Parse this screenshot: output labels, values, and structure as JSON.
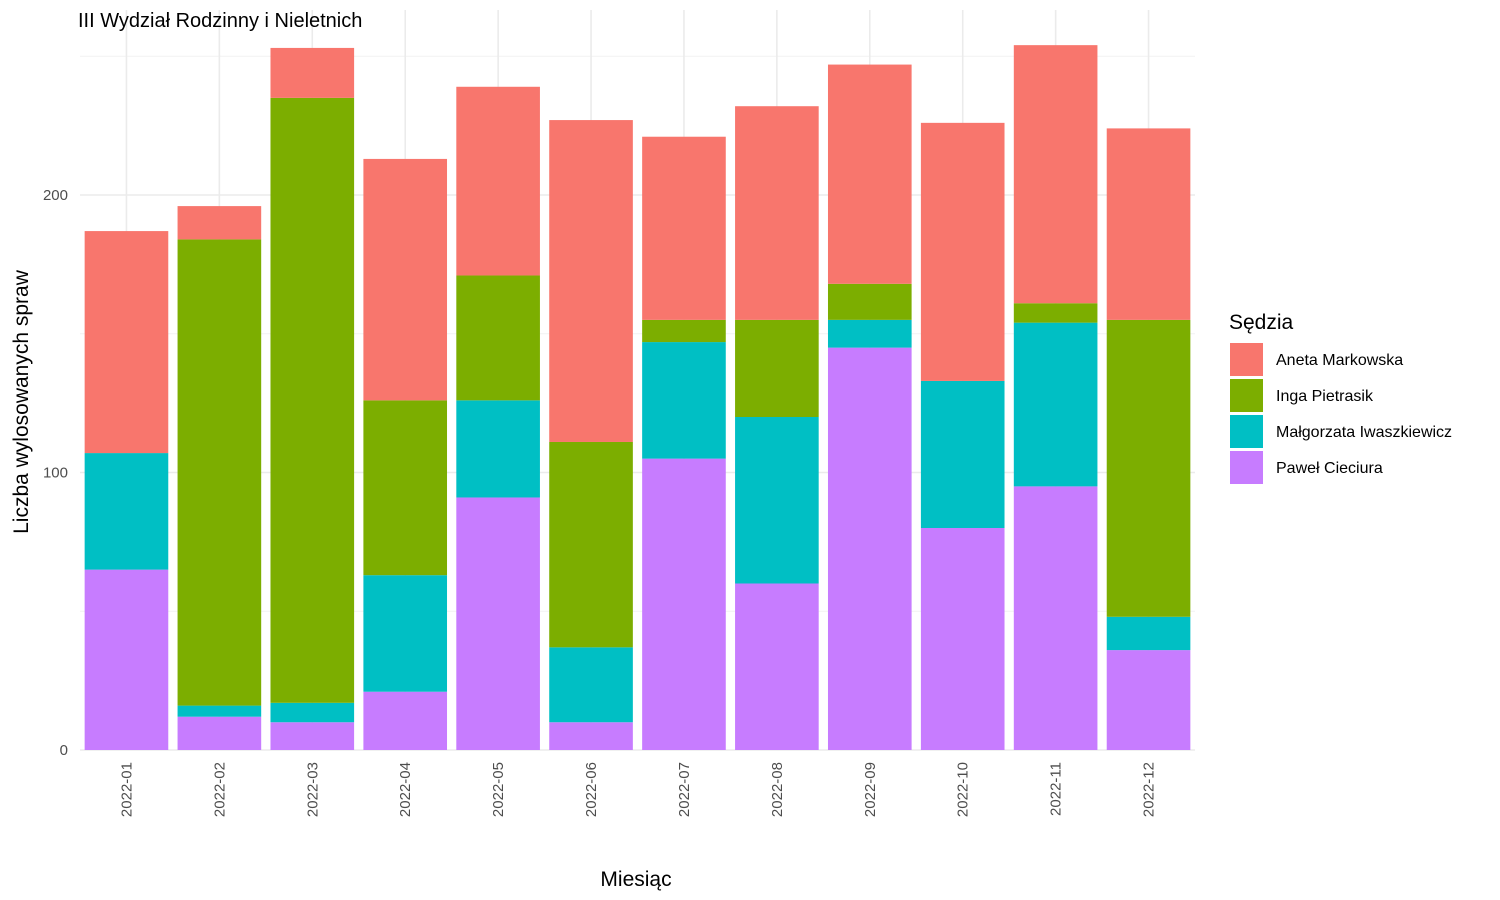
{
  "chart_data": {
    "type": "bar",
    "stacked": true,
    "title": "III Wydział Rodzinny i Nieletnich",
    "xlabel": "Miesiąc",
    "ylabel": "Liczba wylosowanych spraw",
    "ylim": [
      0,
      260
    ],
    "yticks": [
      0,
      100,
      200
    ],
    "grid": true,
    "legend_title": "Sędzia",
    "legend_position": "right",
    "categories": [
      "2022-01",
      "2022-02",
      "2022-03",
      "2022-04",
      "2022-05",
      "2022-06",
      "2022-07",
      "2022-08",
      "2022-09",
      "2022-10",
      "2022-11",
      "2022-12"
    ],
    "series": [
      {
        "name": "Paweł Cieciura",
        "color": "#C77CFF",
        "values": [
          65,
          12,
          10,
          21,
          91,
          10,
          105,
          60,
          145,
          80,
          95,
          36
        ]
      },
      {
        "name": "Małgorzata Iwaszkiewicz",
        "color": "#00BFC4",
        "values": [
          42,
          4,
          7,
          42,
          35,
          27,
          42,
          60,
          10,
          53,
          59,
          12
        ]
      },
      {
        "name": "Inga Pietrasik",
        "color": "#7CAE00",
        "values": [
          0,
          168,
          218,
          63,
          45,
          74,
          8,
          35,
          13,
          0,
          7,
          107
        ]
      },
      {
        "name": "Aneta Markowska",
        "color": "#F8766D",
        "values": [
          80,
          12,
          18,
          87,
          68,
          116,
          66,
          77,
          79,
          93,
          93,
          69
        ]
      }
    ],
    "legend_order": [
      "Aneta Markowska",
      "Inga Pietrasik",
      "Małgorzata Iwaszkiewicz",
      "Paweł Cieciura"
    ]
  }
}
